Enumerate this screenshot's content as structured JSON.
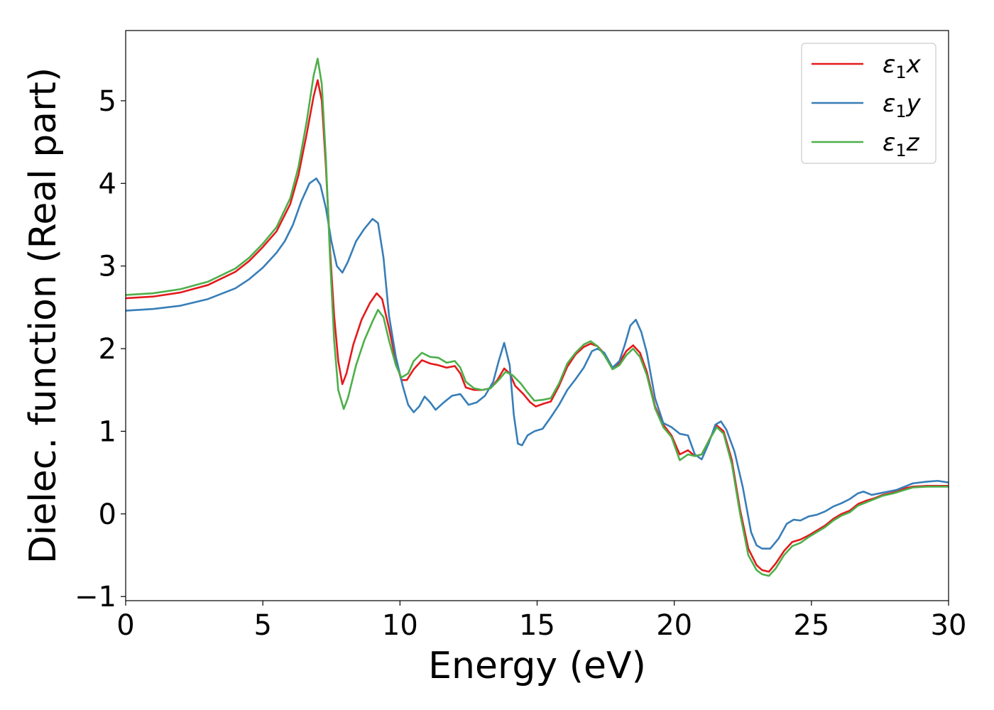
{
  "chart_data": {
    "type": "line",
    "title": "",
    "xlabel": "Energy (eV)",
    "ylabel": "Dielec. function (Real part)",
    "xlim": [
      0,
      30
    ],
    "ylim": [
      -1.05,
      5.85
    ],
    "xticks": [
      0,
      5,
      10,
      15,
      20,
      25,
      30
    ],
    "xtick_labels": [
      "0",
      "5",
      "10",
      "15",
      "20",
      "25",
      "30"
    ],
    "yticks": [
      -1,
      0,
      1,
      2,
      3,
      4,
      5
    ],
    "ytick_labels": [
      "−1",
      "0",
      "1",
      "2",
      "3",
      "4",
      "5"
    ],
    "grid": false,
    "legend_position": "top-right",
    "series": [
      {
        "name": "ε₁x",
        "label_base": "ε",
        "label_sub": "1",
        "label_var": "x",
        "color": "#e41a1c",
        "points": [
          [
            0,
            2.61
          ],
          [
            1,
            2.63
          ],
          [
            2,
            2.68
          ],
          [
            3,
            2.77
          ],
          [
            4,
            2.93
          ],
          [
            4.5,
            3.06
          ],
          [
            5,
            3.23
          ],
          [
            5.5,
            3.42
          ],
          [
            6,
            3.75
          ],
          [
            6.3,
            4.1
          ],
          [
            6.6,
            4.6
          ],
          [
            6.85,
            5.05
          ],
          [
            7.0,
            5.25
          ],
          [
            7.15,
            5.0
          ],
          [
            7.3,
            4.2
          ],
          [
            7.45,
            3.2
          ],
          [
            7.6,
            2.4
          ],
          [
            7.75,
            1.85
          ],
          [
            7.9,
            1.57
          ],
          [
            8.05,
            1.7
          ],
          [
            8.3,
            2.05
          ],
          [
            8.6,
            2.35
          ],
          [
            8.9,
            2.55
          ],
          [
            9.15,
            2.67
          ],
          [
            9.35,
            2.6
          ],
          [
            9.6,
            2.25
          ],
          [
            9.85,
            1.85
          ],
          [
            10.05,
            1.62
          ],
          [
            10.25,
            1.62
          ],
          [
            10.5,
            1.75
          ],
          [
            10.8,
            1.86
          ],
          [
            11.1,
            1.82
          ],
          [
            11.4,
            1.8
          ],
          [
            11.7,
            1.77
          ],
          [
            12.0,
            1.79
          ],
          [
            12.2,
            1.7
          ],
          [
            12.4,
            1.53
          ],
          [
            12.7,
            1.5
          ],
          [
            13.0,
            1.5
          ],
          [
            13.3,
            1.52
          ],
          [
            13.55,
            1.62
          ],
          [
            13.8,
            1.76
          ],
          [
            14.0,
            1.7
          ],
          [
            14.2,
            1.55
          ],
          [
            14.5,
            1.45
          ],
          [
            14.75,
            1.35
          ],
          [
            14.95,
            1.3
          ],
          [
            15.2,
            1.33
          ],
          [
            15.5,
            1.36
          ],
          [
            15.8,
            1.55
          ],
          [
            16.1,
            1.78
          ],
          [
            16.4,
            1.93
          ],
          [
            16.7,
            2.02
          ],
          [
            16.95,
            2.06
          ],
          [
            17.2,
            2.03
          ],
          [
            17.45,
            1.94
          ],
          [
            17.75,
            1.76
          ],
          [
            18.0,
            1.83
          ],
          [
            18.25,
            1.97
          ],
          [
            18.5,
            2.04
          ],
          [
            18.75,
            1.95
          ],
          [
            19.0,
            1.72
          ],
          [
            19.3,
            1.3
          ],
          [
            19.6,
            1.08
          ],
          [
            19.9,
            0.95
          ],
          [
            20.2,
            0.72
          ],
          [
            20.5,
            0.77
          ],
          [
            20.75,
            0.7
          ],
          [
            21.0,
            0.72
          ],
          [
            21.25,
            0.88
          ],
          [
            21.55,
            1.07
          ],
          [
            21.8,
            1.0
          ],
          [
            22.1,
            0.65
          ],
          [
            22.4,
            0.05
          ],
          [
            22.7,
            -0.42
          ],
          [
            23.0,
            -0.62
          ],
          [
            23.2,
            -0.68
          ],
          [
            23.45,
            -0.7
          ],
          [
            23.7,
            -0.6
          ],
          [
            24.0,
            -0.45
          ],
          [
            24.3,
            -0.34
          ],
          [
            24.6,
            -0.31
          ],
          [
            24.9,
            -0.26
          ],
          [
            25.2,
            -0.2
          ],
          [
            25.5,
            -0.14
          ],
          [
            25.8,
            -0.06
          ],
          [
            26.1,
            0.0
          ],
          [
            26.4,
            0.04
          ],
          [
            26.7,
            0.12
          ],
          [
            27.0,
            0.16
          ],
          [
            27.3,
            0.19
          ],
          [
            27.6,
            0.23
          ],
          [
            28.0,
            0.26
          ],
          [
            28.4,
            0.31
          ],
          [
            28.7,
            0.33
          ],
          [
            29.2,
            0.34
          ],
          [
            30,
            0.34
          ]
        ]
      },
      {
        "name": "ε₁y",
        "label_base": "ε",
        "label_sub": "1",
        "label_var": "y",
        "color": "#377eb8",
        "points": [
          [
            0,
            2.46
          ],
          [
            1,
            2.48
          ],
          [
            2,
            2.52
          ],
          [
            3,
            2.6
          ],
          [
            4,
            2.73
          ],
          [
            4.5,
            2.84
          ],
          [
            5,
            2.98
          ],
          [
            5.5,
            3.16
          ],
          [
            5.8,
            3.3
          ],
          [
            6.1,
            3.5
          ],
          [
            6.4,
            3.78
          ],
          [
            6.7,
            4.0
          ],
          [
            6.95,
            4.06
          ],
          [
            7.1,
            3.98
          ],
          [
            7.3,
            3.7
          ],
          [
            7.5,
            3.3
          ],
          [
            7.7,
            3.0
          ],
          [
            7.9,
            2.92
          ],
          [
            8.1,
            3.05
          ],
          [
            8.4,
            3.3
          ],
          [
            8.7,
            3.45
          ],
          [
            9.0,
            3.57
          ],
          [
            9.2,
            3.52
          ],
          [
            9.4,
            3.1
          ],
          [
            9.6,
            2.4
          ],
          [
            9.85,
            1.9
          ],
          [
            10.1,
            1.55
          ],
          [
            10.3,
            1.32
          ],
          [
            10.5,
            1.23
          ],
          [
            10.7,
            1.3
          ],
          [
            10.9,
            1.42
          ],
          [
            11.1,
            1.35
          ],
          [
            11.3,
            1.26
          ],
          [
            11.6,
            1.35
          ],
          [
            11.9,
            1.43
          ],
          [
            12.2,
            1.45
          ],
          [
            12.5,
            1.32
          ],
          [
            12.8,
            1.35
          ],
          [
            13.1,
            1.43
          ],
          [
            13.4,
            1.6
          ],
          [
            13.6,
            1.85
          ],
          [
            13.8,
            2.07
          ],
          [
            14.0,
            1.8
          ],
          [
            14.15,
            1.2
          ],
          [
            14.3,
            0.85
          ],
          [
            14.45,
            0.83
          ],
          [
            14.65,
            0.95
          ],
          [
            14.9,
            1.0
          ],
          [
            15.2,
            1.03
          ],
          [
            15.5,
            1.17
          ],
          [
            15.8,
            1.32
          ],
          [
            16.1,
            1.5
          ],
          [
            16.4,
            1.63
          ],
          [
            16.7,
            1.77
          ],
          [
            17.0,
            1.97
          ],
          [
            17.2,
            2.0
          ],
          [
            17.45,
            1.95
          ],
          [
            17.75,
            1.77
          ],
          [
            18.0,
            1.85
          ],
          [
            18.2,
            2.05
          ],
          [
            18.4,
            2.28
          ],
          [
            18.6,
            2.35
          ],
          [
            18.8,
            2.2
          ],
          [
            19.0,
            1.95
          ],
          [
            19.3,
            1.4
          ],
          [
            19.6,
            1.1
          ],
          [
            19.9,
            1.05
          ],
          [
            20.2,
            0.97
          ],
          [
            20.5,
            0.95
          ],
          [
            20.75,
            0.72
          ],
          [
            21.0,
            0.66
          ],
          [
            21.25,
            0.85
          ],
          [
            21.5,
            1.08
          ],
          [
            21.7,
            1.12
          ],
          [
            21.9,
            1.02
          ],
          [
            22.2,
            0.75
          ],
          [
            22.5,
            0.32
          ],
          [
            22.8,
            -0.22
          ],
          [
            23.0,
            -0.38
          ],
          [
            23.2,
            -0.42
          ],
          [
            23.5,
            -0.42
          ],
          [
            23.8,
            -0.3
          ],
          [
            24.1,
            -0.12
          ],
          [
            24.35,
            -0.07
          ],
          [
            24.6,
            -0.08
          ],
          [
            24.9,
            -0.03
          ],
          [
            25.2,
            -0.01
          ],
          [
            25.5,
            0.03
          ],
          [
            25.8,
            0.09
          ],
          [
            26.1,
            0.13
          ],
          [
            26.4,
            0.18
          ],
          [
            26.7,
            0.25
          ],
          [
            26.9,
            0.27
          ],
          [
            27.2,
            0.23
          ],
          [
            27.5,
            0.25
          ],
          [
            27.8,
            0.27
          ],
          [
            28.1,
            0.29
          ],
          [
            28.4,
            0.33
          ],
          [
            28.7,
            0.37
          ],
          [
            29.2,
            0.39
          ],
          [
            29.6,
            0.4
          ],
          [
            30,
            0.38
          ]
        ]
      },
      {
        "name": "ε₁z",
        "label_base": "ε",
        "label_sub": "1",
        "label_var": "z",
        "color": "#4daf4a",
        "points": [
          [
            0,
            2.65
          ],
          [
            1,
            2.67
          ],
          [
            2,
            2.72
          ],
          [
            3,
            2.81
          ],
          [
            4,
            2.97
          ],
          [
            4.5,
            3.1
          ],
          [
            5,
            3.27
          ],
          [
            5.5,
            3.47
          ],
          [
            6,
            3.82
          ],
          [
            6.3,
            4.2
          ],
          [
            6.6,
            4.75
          ],
          [
            6.85,
            5.3
          ],
          [
            7.0,
            5.51
          ],
          [
            7.15,
            5.2
          ],
          [
            7.3,
            4.3
          ],
          [
            7.45,
            3.1
          ],
          [
            7.6,
            2.1
          ],
          [
            7.75,
            1.5
          ],
          [
            7.95,
            1.27
          ],
          [
            8.1,
            1.4
          ],
          [
            8.4,
            1.8
          ],
          [
            8.7,
            2.1
          ],
          [
            9.0,
            2.33
          ],
          [
            9.2,
            2.47
          ],
          [
            9.4,
            2.38
          ],
          [
            9.6,
            2.1
          ],
          [
            9.85,
            1.8
          ],
          [
            10.05,
            1.65
          ],
          [
            10.3,
            1.7
          ],
          [
            10.5,
            1.85
          ],
          [
            10.8,
            1.95
          ],
          [
            11.1,
            1.9
          ],
          [
            11.4,
            1.89
          ],
          [
            11.7,
            1.83
          ],
          [
            12.0,
            1.85
          ],
          [
            12.2,
            1.77
          ],
          [
            12.4,
            1.6
          ],
          [
            12.7,
            1.52
          ],
          [
            13.0,
            1.5
          ],
          [
            13.3,
            1.52
          ],
          [
            13.6,
            1.62
          ],
          [
            13.85,
            1.72
          ],
          [
            14.1,
            1.68
          ],
          [
            14.4,
            1.58
          ],
          [
            14.65,
            1.47
          ],
          [
            14.9,
            1.37
          ],
          [
            15.2,
            1.38
          ],
          [
            15.5,
            1.4
          ],
          [
            15.8,
            1.58
          ],
          [
            16.1,
            1.82
          ],
          [
            16.4,
            1.95
          ],
          [
            16.7,
            2.05
          ],
          [
            16.95,
            2.09
          ],
          [
            17.2,
            2.03
          ],
          [
            17.45,
            1.92
          ],
          [
            17.75,
            1.75
          ],
          [
            18.0,
            1.8
          ],
          [
            18.25,
            1.92
          ],
          [
            18.5,
            2.0
          ],
          [
            18.75,
            1.9
          ],
          [
            19.0,
            1.68
          ],
          [
            19.3,
            1.28
          ],
          [
            19.6,
            1.05
          ],
          [
            19.9,
            0.93
          ],
          [
            20.2,
            0.65
          ],
          [
            20.5,
            0.72
          ],
          [
            20.75,
            0.7
          ],
          [
            21.0,
            0.72
          ],
          [
            21.25,
            0.88
          ],
          [
            21.55,
            1.05
          ],
          [
            21.8,
            0.97
          ],
          [
            22.1,
            0.6
          ],
          [
            22.4,
            0.0
          ],
          [
            22.7,
            -0.5
          ],
          [
            23.0,
            -0.68
          ],
          [
            23.2,
            -0.73
          ],
          [
            23.45,
            -0.75
          ],
          [
            23.7,
            -0.66
          ],
          [
            24.0,
            -0.5
          ],
          [
            24.3,
            -0.39
          ],
          [
            24.6,
            -0.35
          ],
          [
            24.9,
            -0.28
          ],
          [
            25.2,
            -0.22
          ],
          [
            25.5,
            -0.16
          ],
          [
            25.8,
            -0.08
          ],
          [
            26.1,
            -0.02
          ],
          [
            26.4,
            0.02
          ],
          [
            26.7,
            0.1
          ],
          [
            27.0,
            0.14
          ],
          [
            27.3,
            0.18
          ],
          [
            27.6,
            0.22
          ],
          [
            28.0,
            0.25
          ],
          [
            28.4,
            0.29
          ],
          [
            28.7,
            0.32
          ],
          [
            29.2,
            0.33
          ],
          [
            30,
            0.33
          ]
        ]
      }
    ]
  }
}
